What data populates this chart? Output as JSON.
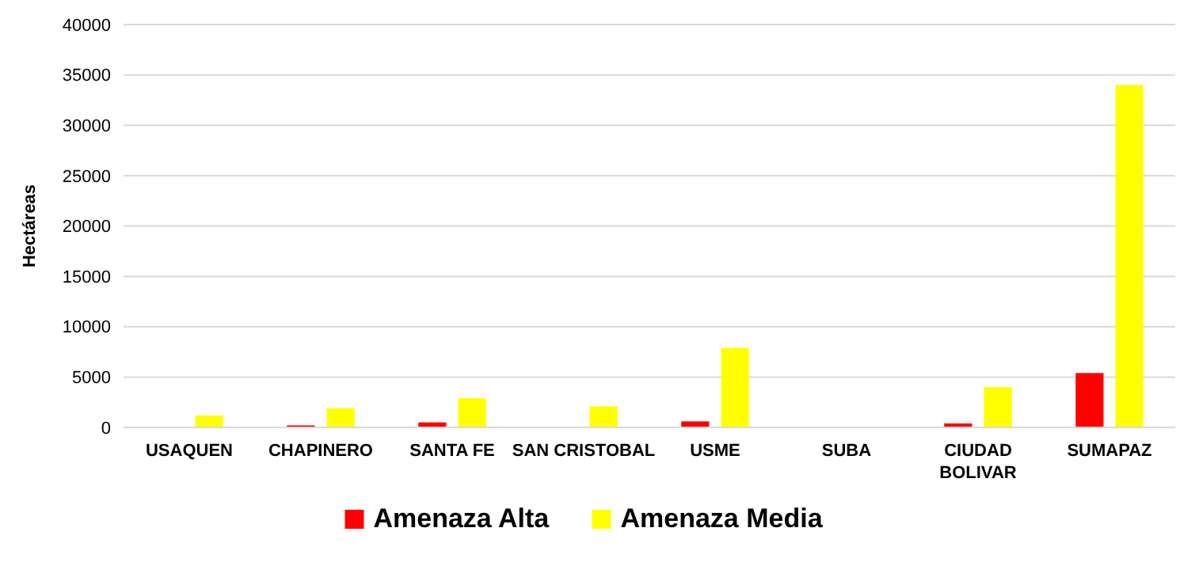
{
  "chart_data": {
    "type": "bar",
    "ylabel": "Hectáreas",
    "categories": [
      "USAQUEN",
      "CHAPINERO",
      "SANTA FE",
      "SAN CRISTOBAL",
      "USME",
      "SUBA",
      "CIUDAD BOLIVAR",
      "SUMAPAZ"
    ],
    "series": [
      {
        "name": "Amenaza Alta",
        "color": "#ff0000",
        "values": [
          0,
          200,
          500,
          0,
          600,
          0,
          400,
          5400
        ]
      },
      {
        "name": "Amenaza Media",
        "color": "#ffff00",
        "values": [
          1200,
          1900,
          2900,
          2100,
          7900,
          0,
          4000,
          34000
        ]
      }
    ],
    "ylim": [
      0,
      40000
    ],
    "yticks": [
      0,
      5000,
      10000,
      15000,
      20000,
      25000,
      30000,
      35000,
      40000
    ],
    "grid": "y",
    "legend": "bottom"
  }
}
